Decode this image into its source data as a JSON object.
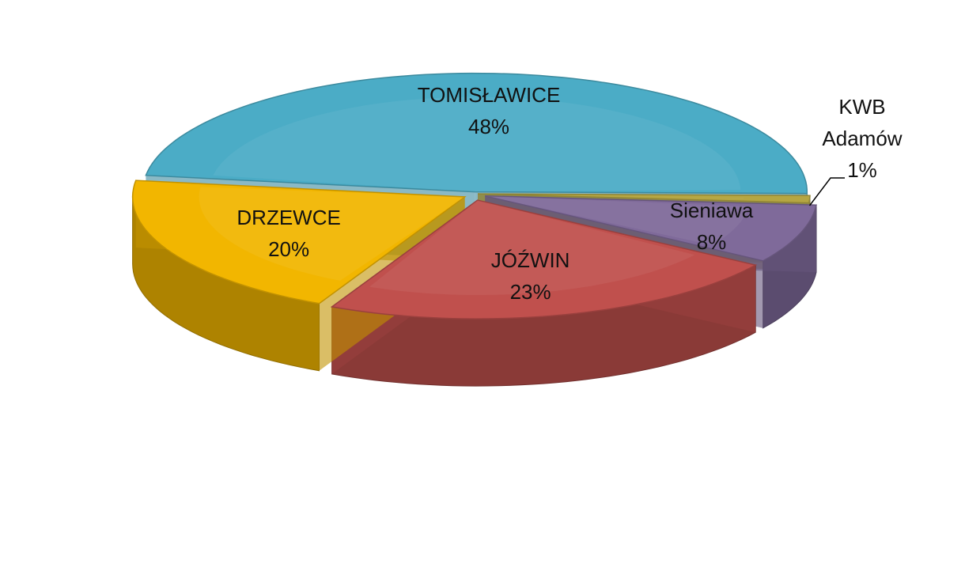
{
  "chart_data": {
    "type": "pie",
    "categories": [
      "TOMISŁAWICE",
      "KWB Adamów",
      "Sieniawa",
      "JÓŹWIN",
      "DRZEWCE"
    ],
    "values": [
      48,
      1,
      8,
      23,
      20
    ],
    "value_labels": [
      "48%",
      "1%",
      "8%",
      "23%",
      "20%"
    ],
    "colors": [
      "#4bacc6",
      "#b5a642",
      "#7f6a9a",
      "#c0504d",
      "#f2b600"
    ]
  }
}
